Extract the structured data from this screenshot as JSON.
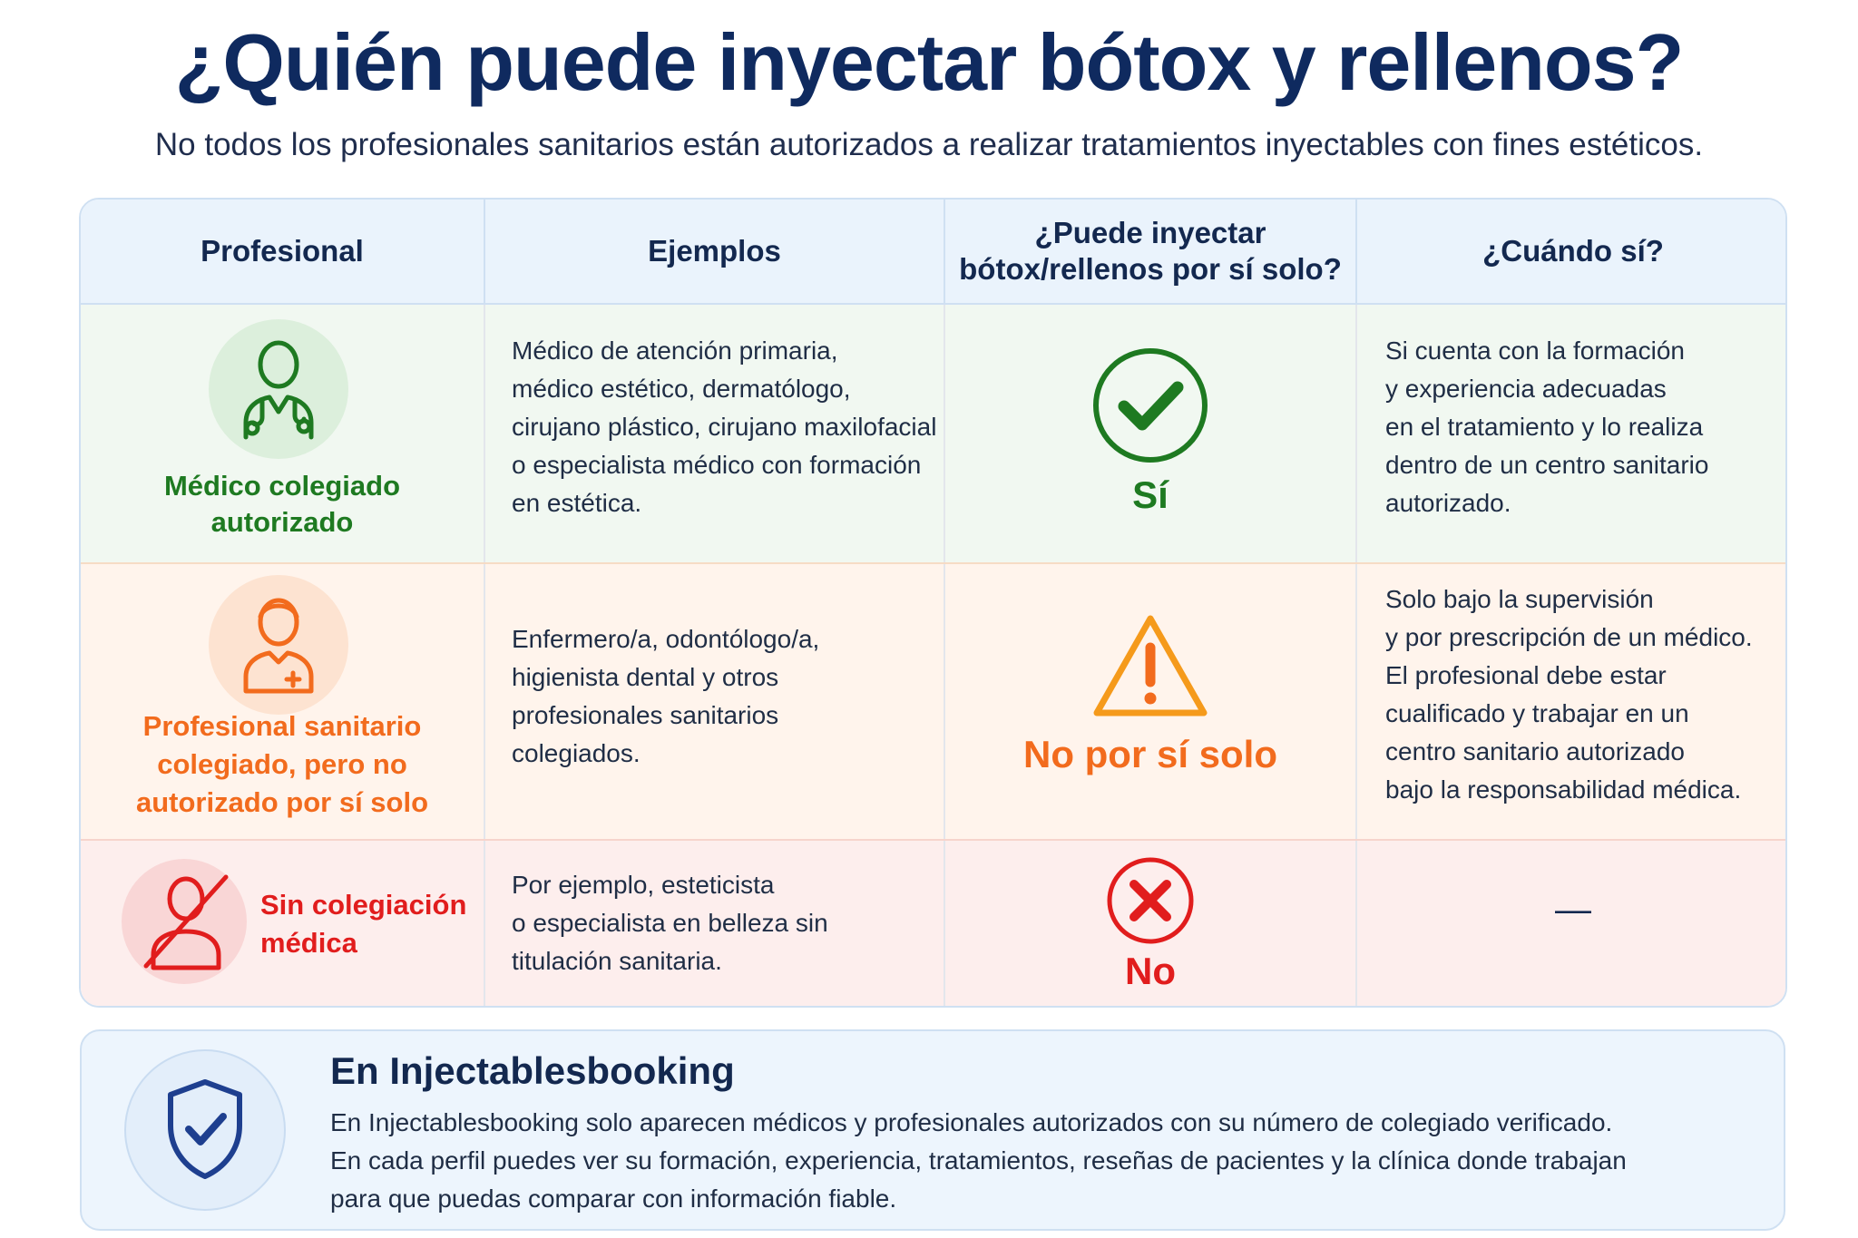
{
  "title": "¿Quién puede inyectar bótox y rellenos?",
  "subtitle": "No todos los profesionales sanitarios están autorizados a realizar tratamientos inyectables con fines estéticos.",
  "colors": {
    "navy": "#0f2a5f",
    "green": "#1e7a21",
    "orange": "#f26b1d",
    "red": "#e11d1d",
    "blue": "#1e3f8f"
  },
  "table": {
    "headers": {
      "profesional": "Profesional",
      "ejemplos": "Ejemplos",
      "puede_line1": "¿Puede inyectar",
      "puede_line2": "bótox/rellenos por sí solo?",
      "cuando": "¿Cuándo sí?"
    },
    "rows": [
      {
        "icon": "doctor-icon",
        "title_line1": "Médico colegiado",
        "title_line2": "autorizado",
        "examples": [
          "Médico de atención primaria,",
          "médico estético, dermatólogo,",
          "cirujano plástico, cirujano maxilofacial",
          "o especialista médico con formación",
          "en estética."
        ],
        "verdict_icon": "check-circle-icon",
        "verdict": "Sí",
        "when": [
          "Si cuenta con la formación",
          "y experiencia adecuadas",
          "en el tratamiento y lo realiza",
          "dentro de un centro sanitario",
          "autorizado."
        ]
      },
      {
        "icon": "nurse-icon",
        "title_line1": "Profesional sanitario",
        "title_line2": "colegiado, pero no",
        "title_line3": "autorizado por sí solo",
        "examples": [
          "Enfermero/a, odontólogo/a,",
          "higienista dental y otros",
          "profesionales sanitarios",
          "colegiados."
        ],
        "verdict_icon": "warning-triangle-icon",
        "verdict": "No por sí solo",
        "when": [
          "Solo bajo la supervisión",
          "y por prescripción de un médico.",
          "El profesional debe estar",
          "cualificado y trabajar en un",
          "centro sanitario autorizado",
          "bajo la responsabilidad médica."
        ]
      },
      {
        "icon": "crossed-person-icon",
        "title_line1": "Sin colegiación",
        "title_line2": "médica",
        "examples": [
          "Por ejemplo, esteticista",
          "o especialista en belleza sin",
          "titulación sanitaria."
        ],
        "verdict_icon": "x-circle-icon",
        "verdict": "No",
        "when_dash": "—"
      }
    ]
  },
  "banner": {
    "icon": "shield-check-icon",
    "title": "En Injectablesbooking",
    "lines": [
      "En Injectablesbooking solo aparecen médicos y profesionales autorizados con su número de colegiado verificado.",
      "En cada perfil puedes ver su formación, experiencia, tratamientos, reseñas de pacientes y la clínica donde trabajan",
      "para que puedas comparar con información fiable."
    ]
  }
}
